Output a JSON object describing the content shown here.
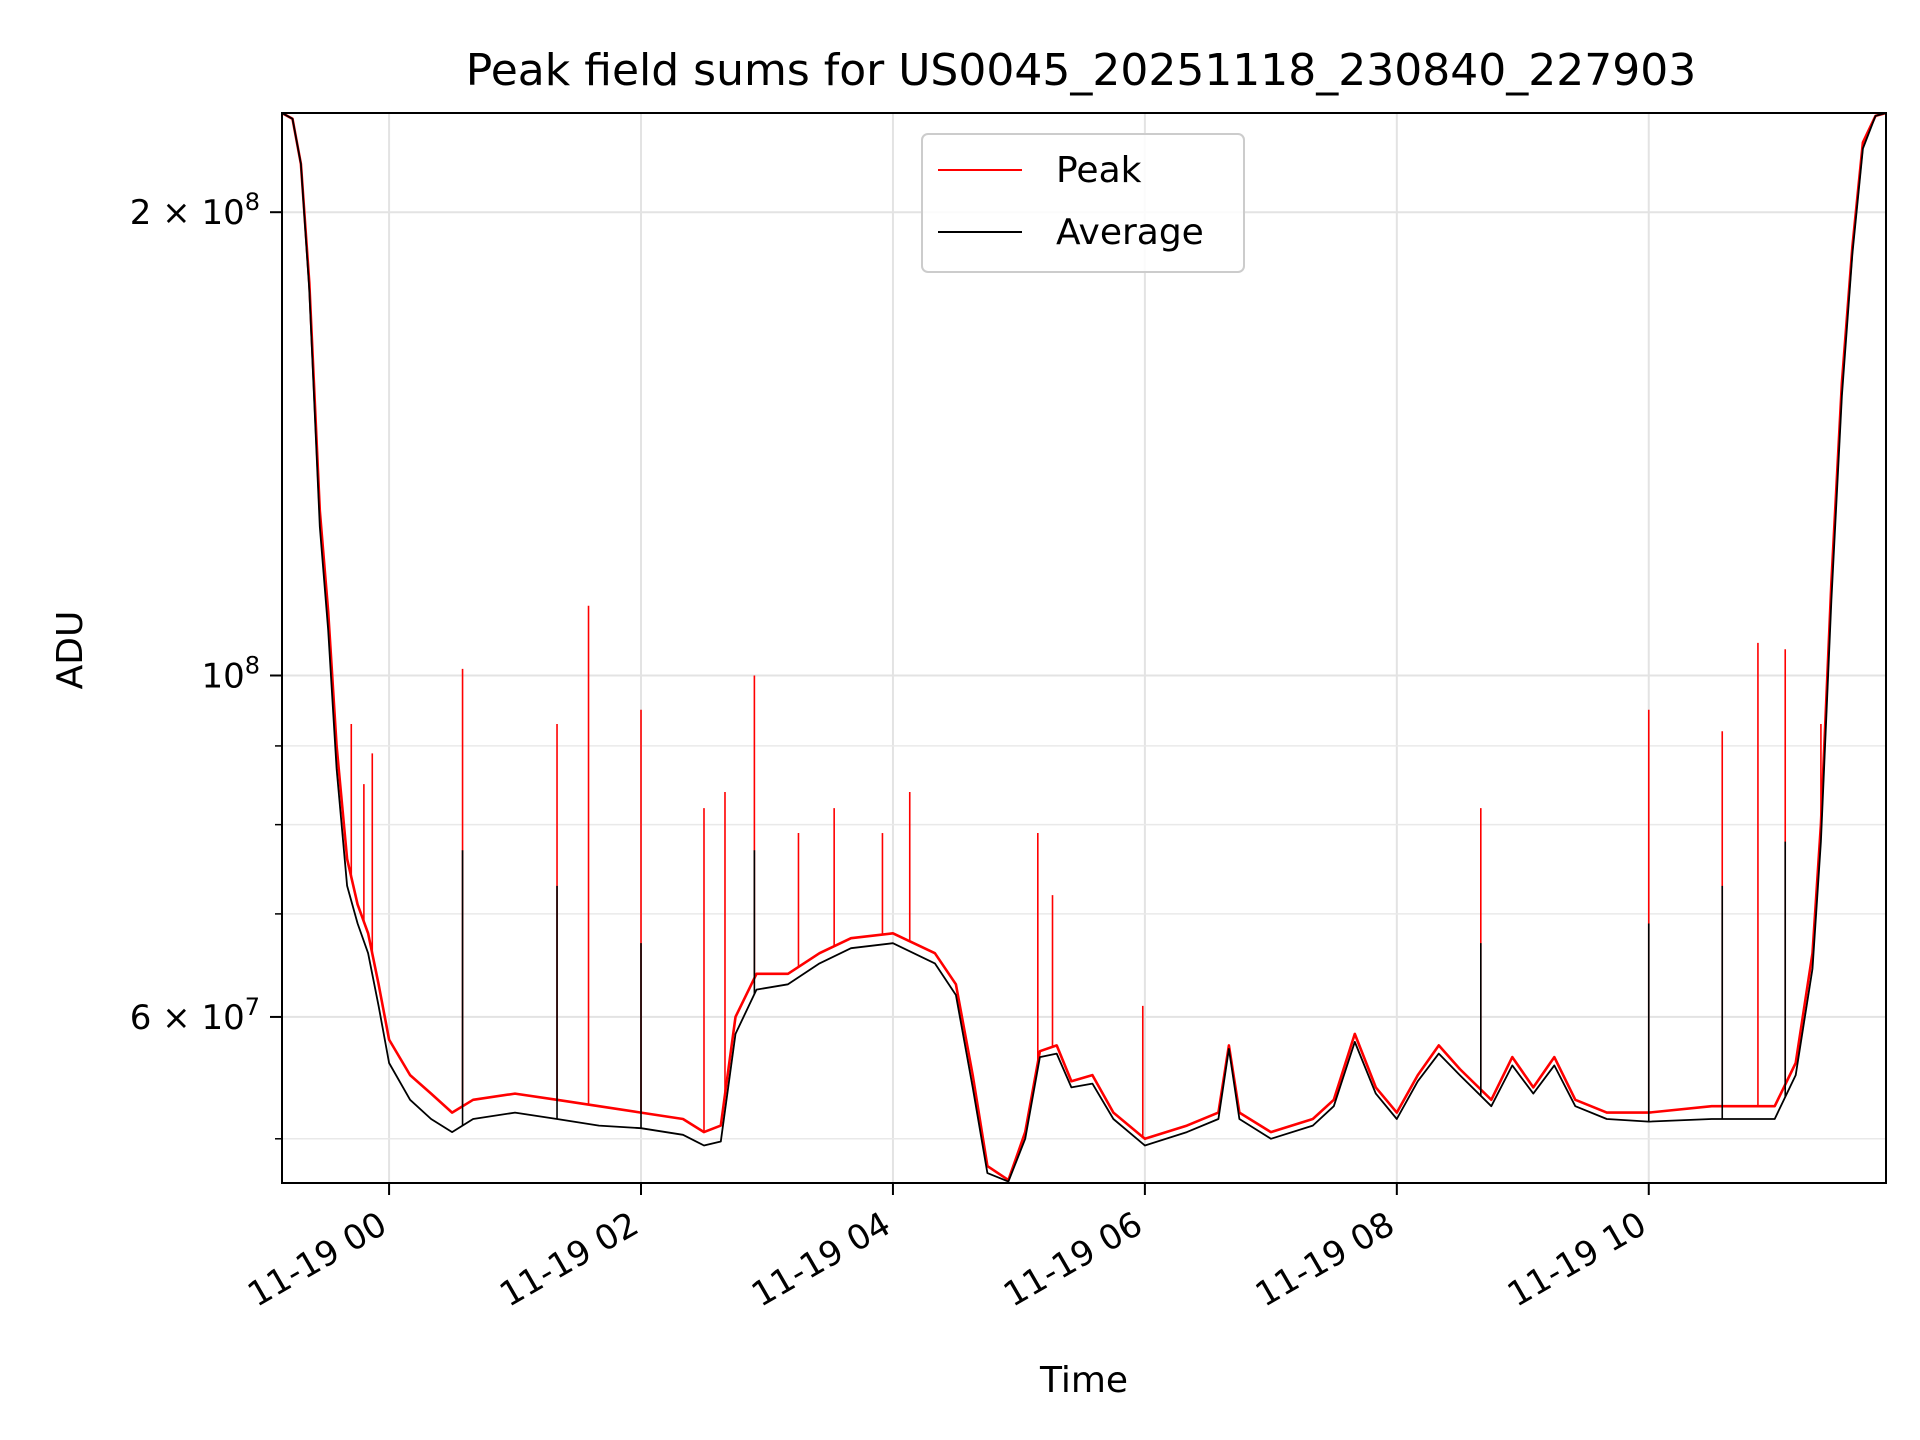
{
  "chart_data": {
    "type": "line",
    "title": "Peak field sums for US0045_20251118_230840_227903",
    "xlabel": "Time",
    "ylabel": "ADU",
    "yscale": "log",
    "grid": true,
    "legend_position": "upper-center",
    "xlim": [
      "2025-11-18 23:09",
      "2025-11-19 11:53"
    ],
    "ylim": [
      46800000,
      232000000
    ],
    "x_ticks": [
      {
        "label": "11-19 00",
        "t": "2025-11-19 00:00"
      },
      {
        "label": "11-19 02",
        "t": "2025-11-19 02:00"
      },
      {
        "label": "11-19 04",
        "t": "2025-11-19 04:00"
      },
      {
        "label": "11-19 06",
        "t": "2025-11-19 06:00"
      },
      {
        "label": "11-19 08",
        "t": "2025-11-19 08:00"
      },
      {
        "label": "11-19 10",
        "t": "2025-11-19 10:00"
      }
    ],
    "y_ticks": [
      {
        "mantissa": "2",
        "exp": "8",
        "value": 200000000
      },
      {
        "mantissa": "",
        "exp": "8",
        "value": 100000000
      },
      {
        "mantissa": "6",
        "exp": "7",
        "value": 60000000
      }
    ],
    "y_minor_ticks": [
      50000000,
      70000000,
      80000000,
      90000000
    ],
    "series": [
      {
        "name": "Peak",
        "color": "#ff0000",
        "points": [
          [
            "2025-11-18 23:09",
            232000000
          ],
          [
            "2025-11-18 23:14",
            230000000
          ],
          [
            "2025-11-18 23:18",
            215000000
          ],
          [
            "2025-11-18 23:22",
            180000000
          ],
          [
            "2025-11-18 23:27",
            128000000
          ],
          [
            "2025-11-18 23:31",
            110000000
          ],
          [
            "2025-11-18 23:35",
            90000000
          ],
          [
            "2025-11-18 23:40",
            76000000
          ],
          [
            "2025-11-18 23:45",
            71000000
          ],
          [
            "2025-11-18 23:50",
            68000000
          ],
          [
            "2025-11-18 23:55",
            63000000
          ],
          [
            "2025-11-19 00:00",
            58000000
          ],
          [
            "2025-11-19 00:10",
            55000000
          ],
          [
            "2025-11-19 00:20",
            53500000
          ],
          [
            "2025-11-19 00:30",
            52000000
          ],
          [
            "2025-11-19 00:40",
            53000000
          ],
          [
            "2025-11-19 01:00",
            53500000
          ],
          [
            "2025-11-19 01:20",
            53000000
          ],
          [
            "2025-11-19 01:40",
            52500000
          ],
          [
            "2025-11-19 02:00",
            52000000
          ],
          [
            "2025-11-19 02:20",
            51500000
          ],
          [
            "2025-11-19 02:30",
            50500000
          ],
          [
            "2025-11-19 02:38",
            51000000
          ],
          [
            "2025-11-19 02:45",
            60000000
          ],
          [
            "2025-11-19 02:55",
            64000000
          ],
          [
            "2025-11-19 03:10",
            64000000
          ],
          [
            "2025-11-19 03:25",
            66000000
          ],
          [
            "2025-11-19 03:40",
            67500000
          ],
          [
            "2025-11-19 04:00",
            68000000
          ],
          [
            "2025-11-19 04:20",
            66000000
          ],
          [
            "2025-11-19 04:30",
            63000000
          ],
          [
            "2025-11-19 04:38",
            55000000
          ],
          [
            "2025-11-19 04:45",
            48000000
          ],
          [
            "2025-11-19 04:55",
            47000000
          ],
          [
            "2025-11-19 05:03",
            50500000
          ],
          [
            "2025-11-19 05:10",
            57000000
          ],
          [
            "2025-11-19 05:18",
            57500000
          ],
          [
            "2025-11-19 05:25",
            54500000
          ],
          [
            "2025-11-19 05:35",
            55000000
          ],
          [
            "2025-11-19 05:45",
            52000000
          ],
          [
            "2025-11-19 06:00",
            50000000
          ],
          [
            "2025-11-19 06:20",
            51000000
          ],
          [
            "2025-11-19 06:35",
            52000000
          ],
          [
            "2025-11-19 06:40",
            57500000
          ],
          [
            "2025-11-19 06:45",
            52000000
          ],
          [
            "2025-11-19 07:00",
            50500000
          ],
          [
            "2025-11-19 07:20",
            51500000
          ],
          [
            "2025-11-19 07:30",
            53000000
          ],
          [
            "2025-11-19 07:40",
            58500000
          ],
          [
            "2025-11-19 07:50",
            54000000
          ],
          [
            "2025-11-19 08:00",
            52000000
          ],
          [
            "2025-11-19 08:10",
            55000000
          ],
          [
            "2025-11-19 08:20",
            57500000
          ],
          [
            "2025-11-19 08:30",
            55500000
          ],
          [
            "2025-11-19 08:45",
            53000000
          ],
          [
            "2025-11-19 08:55",
            56500000
          ],
          [
            "2025-11-19 09:05",
            54000000
          ],
          [
            "2025-11-19 09:15",
            56500000
          ],
          [
            "2025-11-19 09:25",
            53000000
          ],
          [
            "2025-11-19 09:40",
            52000000
          ],
          [
            "2025-11-19 10:00",
            52000000
          ],
          [
            "2025-11-19 10:30",
            52500000
          ],
          [
            "2025-11-19 11:00",
            52500000
          ],
          [
            "2025-11-19 11:10",
            56000000
          ],
          [
            "2025-11-19 11:18",
            66000000
          ],
          [
            "2025-11-19 11:22",
            80000000
          ],
          [
            "2025-11-19 11:27",
            115000000
          ],
          [
            "2025-11-19 11:32",
            155000000
          ],
          [
            "2025-11-19 11:37",
            190000000
          ],
          [
            "2025-11-19 11:42",
            222000000
          ],
          [
            "2025-11-19 11:48",
            231000000
          ],
          [
            "2025-11-19 11:53",
            232000000
          ]
        ],
        "spikes": [
          [
            "2025-11-18 23:42",
            93000000
          ],
          [
            "2025-11-18 23:48",
            85000000
          ],
          [
            "2025-11-18 23:52",
            89000000
          ],
          [
            "2025-11-19 00:35",
            101000000
          ],
          [
            "2025-11-19 01:20",
            93000000
          ],
          [
            "2025-11-19 01:35",
            111000000
          ],
          [
            "2025-11-19 02:00",
            95000000
          ],
          [
            "2025-11-19 02:30",
            82000000
          ],
          [
            "2025-11-19 02:40",
            84000000
          ],
          [
            "2025-11-19 02:54",
            100000000
          ],
          [
            "2025-11-19 03:15",
            79000000
          ],
          [
            "2025-11-19 03:32",
            82000000
          ],
          [
            "2025-11-19 03:55",
            79000000
          ],
          [
            "2025-11-19 04:08",
            84000000
          ],
          [
            "2025-11-19 05:09",
            79000000
          ],
          [
            "2025-11-19 05:16",
            72000000
          ],
          [
            "2025-11-19 05:59",
            61000000
          ],
          [
            "2025-11-19 08:40",
            82000000
          ],
          [
            "2025-11-19 10:00",
            95000000
          ],
          [
            "2025-11-19 10:35",
            92000000
          ],
          [
            "2025-11-19 10:52",
            105000000
          ],
          [
            "2025-11-19 11:05",
            104000000
          ],
          [
            "2025-11-19 11:22",
            93000000
          ]
        ]
      },
      {
        "name": "Average",
        "color": "#000000",
        "points": [
          [
            "2025-11-18 23:09",
            232000000
          ],
          [
            "2025-11-18 23:14",
            230000000
          ],
          [
            "2025-11-18 23:18",
            215000000
          ],
          [
            "2025-11-18 23:22",
            178000000
          ],
          [
            "2025-11-18 23:27",
            125000000
          ],
          [
            "2025-11-18 23:31",
            107000000
          ],
          [
            "2025-11-18 23:35",
            87000000
          ],
          [
            "2025-11-18 23:40",
            73000000
          ],
          [
            "2025-11-18 23:45",
            69000000
          ],
          [
            "2025-11-18 23:50",
            66000000
          ],
          [
            "2025-11-18 23:55",
            61000000
          ],
          [
            "2025-11-19 00:00",
            56000000
          ],
          [
            "2025-11-19 00:10",
            53000000
          ],
          [
            "2025-11-19 00:20",
            51500000
          ],
          [
            "2025-11-19 00:30",
            50500000
          ],
          [
            "2025-11-19 00:40",
            51500000
          ],
          [
            "2025-11-19 01:00",
            52000000
          ],
          [
            "2025-11-19 01:20",
            51500000
          ],
          [
            "2025-11-19 01:40",
            51000000
          ],
          [
            "2025-11-19 02:00",
            50800000
          ],
          [
            "2025-11-19 02:20",
            50300000
          ],
          [
            "2025-11-19 02:30",
            49500000
          ],
          [
            "2025-11-19 02:38",
            49800000
          ],
          [
            "2025-11-19 02:45",
            58500000
          ],
          [
            "2025-11-19 02:55",
            62500000
          ],
          [
            "2025-11-19 03:10",
            63000000
          ],
          [
            "2025-11-19 03:25",
            65000000
          ],
          [
            "2025-11-19 03:40",
            66500000
          ],
          [
            "2025-11-19 04:00",
            67000000
          ],
          [
            "2025-11-19 04:20",
            65000000
          ],
          [
            "2025-11-19 04:30",
            62000000
          ],
          [
            "2025-11-19 04:38",
            54000000
          ],
          [
            "2025-11-19 04:45",
            47500000
          ],
          [
            "2025-11-19 04:55",
            46900000
          ],
          [
            "2025-11-19 05:03",
            50000000
          ],
          [
            "2025-11-19 05:10",
            56500000
          ],
          [
            "2025-11-19 05:18",
            56800000
          ],
          [
            "2025-11-19 05:25",
            54000000
          ],
          [
            "2025-11-19 05:35",
            54300000
          ],
          [
            "2025-11-19 05:45",
            51500000
          ],
          [
            "2025-11-19 06:00",
            49500000
          ],
          [
            "2025-11-19 06:20",
            50500000
          ],
          [
            "2025-11-19 06:35",
            51500000
          ],
          [
            "2025-11-19 06:40",
            57200000
          ],
          [
            "2025-11-19 06:45",
            51500000
          ],
          [
            "2025-11-19 07:00",
            50000000
          ],
          [
            "2025-11-19 07:20",
            51000000
          ],
          [
            "2025-11-19 07:30",
            52500000
          ],
          [
            "2025-11-19 07:40",
            57800000
          ],
          [
            "2025-11-19 07:50",
            53500000
          ],
          [
            "2025-11-19 08:00",
            51500000
          ],
          [
            "2025-11-19 08:10",
            54500000
          ],
          [
            "2025-11-19 08:20",
            56800000
          ],
          [
            "2025-11-19 08:30",
            55000000
          ],
          [
            "2025-11-19 08:45",
            52500000
          ],
          [
            "2025-11-19 08:55",
            55800000
          ],
          [
            "2025-11-19 09:05",
            53500000
          ],
          [
            "2025-11-19 09:15",
            55800000
          ],
          [
            "2025-11-19 09:25",
            52500000
          ],
          [
            "2025-11-19 09:40",
            51500000
          ],
          [
            "2025-11-19 10:00",
            51300000
          ],
          [
            "2025-11-19 10:30",
            51500000
          ],
          [
            "2025-11-19 11:00",
            51500000
          ],
          [
            "2025-11-19 11:10",
            55000000
          ],
          [
            "2025-11-19 11:18",
            64500000
          ],
          [
            "2025-11-19 11:22",
            78000000
          ],
          [
            "2025-11-19 11:27",
            112000000
          ],
          [
            "2025-11-19 11:32",
            152000000
          ],
          [
            "2025-11-19 11:37",
            188000000
          ],
          [
            "2025-11-19 11:42",
            220000000
          ],
          [
            "2025-11-19 11:48",
            231000000
          ],
          [
            "2025-11-19 11:53",
            232000000
          ]
        ],
        "spikes": [
          [
            "2025-11-19 00:35",
            77000000
          ],
          [
            "2025-11-19 01:20",
            73000000
          ],
          [
            "2025-11-19 02:00",
            67000000
          ],
          [
            "2025-11-19 02:54",
            77000000
          ],
          [
            "2025-11-19 08:40",
            67000000
          ],
          [
            "2025-11-19 10:00",
            69000000
          ],
          [
            "2025-11-19 10:35",
            73000000
          ],
          [
            "2025-11-19 11:05",
            78000000
          ]
        ]
      }
    ]
  }
}
